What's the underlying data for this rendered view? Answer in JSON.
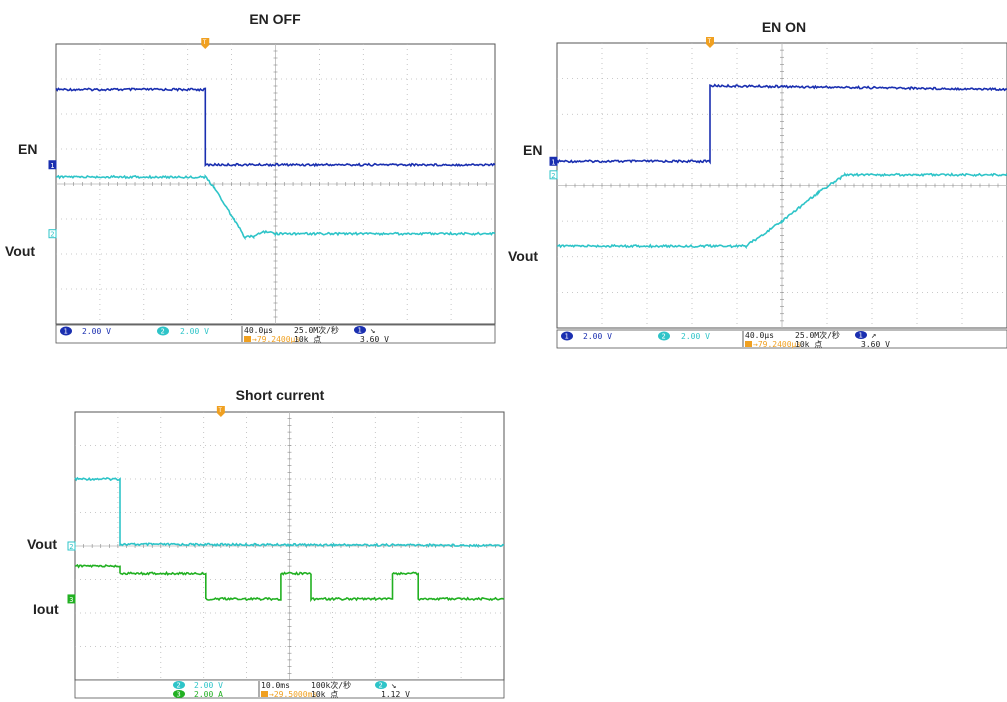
{
  "colors": {
    "ch1": "#1a2fb0",
    "ch2": "#2ec4c8",
    "ch3": "#22b022",
    "trigger": "#f0a020",
    "grid": "#b8b8b8",
    "frame": "#555555"
  },
  "chart_data": [
    {
      "type": "line",
      "title": "EN OFF",
      "grid": true,
      "series": [
        {
          "name": "EN",
          "channel": "1",
          "color": "#1a2fb0",
          "x": [
            -5,
            -1.6,
            -1.6,
            5
          ],
          "y": [
            2.7,
            2.7,
            0.55,
            0.55
          ]
        },
        {
          "name": "Vout",
          "channel": "2",
          "color": "#2ec4c8",
          "x": [
            -5,
            -1.6,
            -1.4,
            -0.95,
            -0.7,
            -0.5,
            -0.3,
            0,
            5
          ],
          "y": [
            0.2,
            0.2,
            -0.1,
            -1.0,
            -1.52,
            -1.5,
            -1.35,
            -1.42,
            -1.42
          ]
        }
      ],
      "readout": {
        "ch1_scale": "2.00 V",
        "ch2_scale": "2.00 V",
        "timebase": "40.0µs",
        "sample_rate": "25.0M次/秒",
        "trig_pos": "→79.2400µs",
        "record": "10k 点",
        "trig_level": "3.60 V",
        "trig_slope": "↘"
      }
    },
    {
      "type": "line",
      "title": "EN ON",
      "grid": true,
      "series": [
        {
          "name": "EN",
          "channel": "1",
          "color": "#1a2fb0",
          "x": [
            -5,
            -1.6,
            -1.6,
            5
          ],
          "y": [
            0.68,
            0.68,
            2.8,
            2.7
          ]
        },
        {
          "name": "Vout",
          "channel": "2",
          "color": "#2ec4c8",
          "x": [
            -5,
            -0.8,
            0,
            0.8,
            1.4,
            5
          ],
          "y": [
            -1.7,
            -1.7,
            -1.0,
            -0.2,
            0.3,
            0.3
          ]
        }
      ],
      "readout": {
        "ch1_scale": "2.00 V",
        "ch2_scale": "2.00 V",
        "timebase": "40.0µs",
        "sample_rate": "25.0M次/秒",
        "trig_pos": "→79.2400µs",
        "record": "10k 点",
        "trig_level": "3.60 V",
        "trig_slope": "↗"
      }
    },
    {
      "type": "line",
      "title": "Short current",
      "grid": true,
      "series": [
        {
          "name": "Vout",
          "channel": "2",
          "color": "#2ec4c8",
          "x": [
            -5,
            -3.95,
            -3.95,
            5
          ],
          "y": [
            2.0,
            2.0,
            0.05,
            0.02
          ]
        },
        {
          "name": "Iout",
          "channel": "3",
          "color": "#22b022",
          "x": [
            -5,
            -3.95,
            -3.95,
            -1.95,
            -1.95,
            -0.2,
            -0.2,
            0.5,
            0.5,
            2.4,
            2.4,
            3.0,
            3.0,
            5
          ],
          "y": [
            -0.6,
            -0.6,
            -0.82,
            -0.82,
            -1.58,
            -1.58,
            -0.82,
            -0.82,
            -1.58,
            -1.58,
            -0.82,
            -0.82,
            -1.58,
            -1.58
          ]
        }
      ],
      "readout": {
        "ch2_scale": "2.00 V",
        "ch3_scale": "2.00 A",
        "timebase": "10.0ms",
        "sample_rate": "100k次/秒",
        "trig_pos": "→29.5000ms",
        "record": "10k 点",
        "trig_level": "1.12 V",
        "trig_slope": "↘"
      }
    }
  ],
  "panels": {
    "en_off": {
      "title": "EN OFF",
      "label_en": "EN",
      "label_vout": "Vout",
      "marker_en": "1",
      "marker_vout": "2"
    },
    "en_on": {
      "title": "EN ON",
      "label_en": "EN",
      "label_vout": "Vout",
      "marker_en": "1",
      "marker_vout": "2"
    },
    "short": {
      "title": "Short current",
      "label_vout": "Vout",
      "label_iout": "Iout",
      "marker_vout": "2",
      "marker_iout": "3"
    }
  },
  "trigger_marker": "T"
}
